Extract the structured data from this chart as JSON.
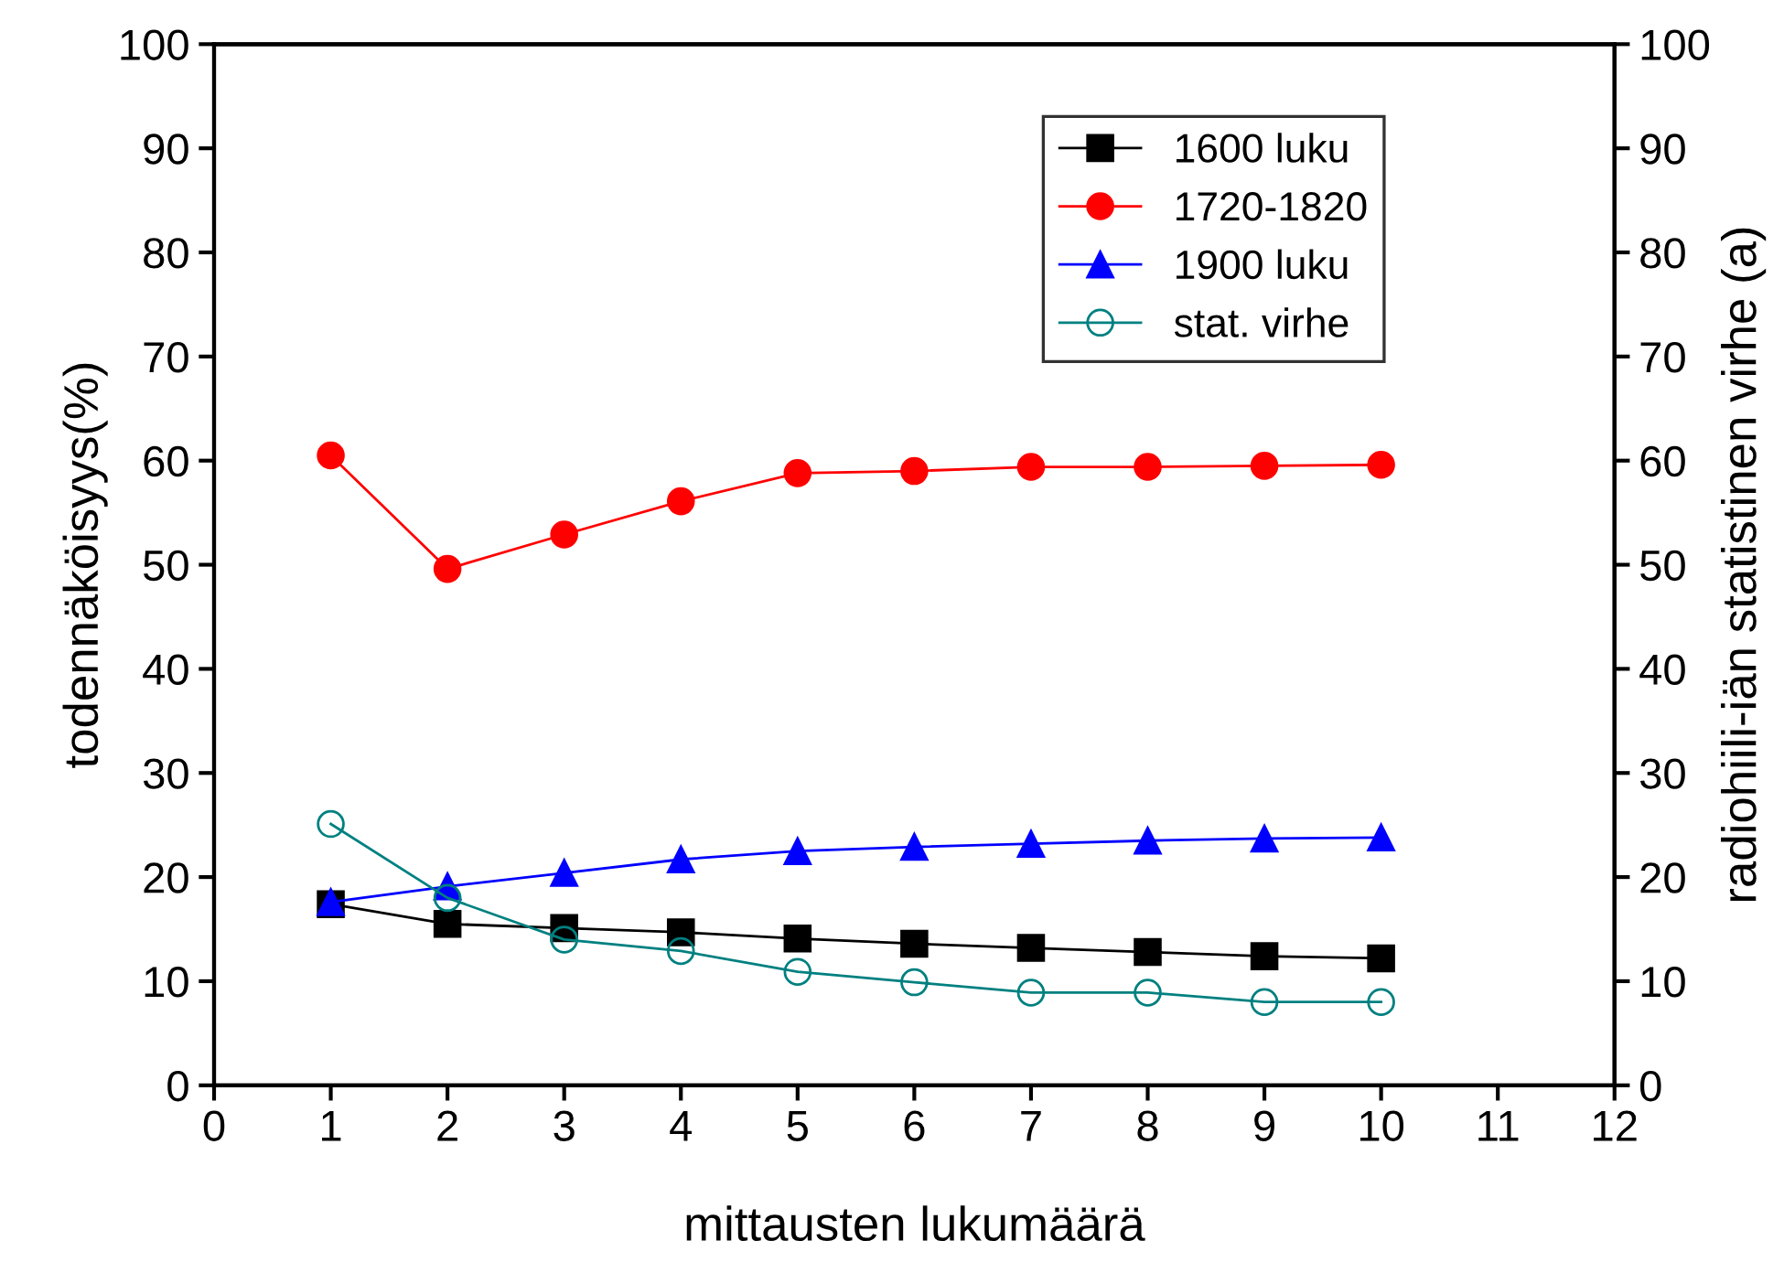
{
  "chart_data": {
    "type": "line",
    "xlabel": "mittausten lukumäärä",
    "ylabel": "todennäköisyys(%)",
    "y2label": "radiohiili-iän statistinen virhe (a)",
    "x": [
      1,
      2,
      3,
      4,
      5,
      6,
      7,
      8,
      9,
      10
    ],
    "xlim": [
      0,
      12
    ],
    "xticks": [
      0,
      1,
      2,
      3,
      4,
      5,
      6,
      7,
      8,
      9,
      10,
      11,
      12
    ],
    "ylim": [
      0,
      100
    ],
    "yticks": [
      0,
      10,
      20,
      30,
      40,
      50,
      60,
      70,
      80,
      90,
      100
    ],
    "y2lim": [
      0,
      100
    ],
    "y2ticks": [
      0,
      10,
      20,
      30,
      40,
      50,
      60,
      70,
      80,
      90,
      100
    ],
    "grid": false,
    "legend": "top right",
    "series": [
      {
        "name": "1600 luku",
        "color": "#000000",
        "marker": "square",
        "values": [
          17.4,
          15.5,
          15.1,
          14.7,
          14.1,
          13.6,
          13.2,
          12.8,
          12.4,
          12.2
        ]
      },
      {
        "name": "1720-1820",
        "color": "#ff0000",
        "marker": "circle",
        "values": [
          60.5,
          49.6,
          52.9,
          56.1,
          58.8,
          59.0,
          59.4,
          59.4,
          59.5,
          59.6
        ]
      },
      {
        "name": "1900 luku",
        "color": "#0000ff",
        "marker": "triangle",
        "values": [
          17.6,
          19.1,
          20.4,
          21.7,
          22.5,
          22.9,
          23.2,
          23.5,
          23.7,
          23.8
        ]
      },
      {
        "name": "stat. virhe",
        "color": "#008080",
        "marker": "circle",
        "axis": "y2",
        "values": [
          25.1,
          18.0,
          14.0,
          12.9,
          10.9,
          9.9,
          8.9,
          8.9,
          8.0,
          8.0
        ]
      }
    ]
  }
}
